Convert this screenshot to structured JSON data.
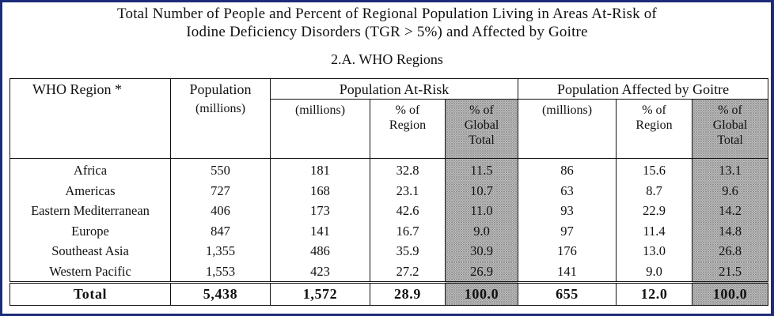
{
  "title_line1": "Total Number of People and Percent of Regional Population Living in Areas At-Risk of",
  "title_line2": "Iodine Deficiency Disorders (TGR > 5%) and Affected by Goitre",
  "subtitle": "2.A.  WHO Regions",
  "headers": {
    "region": "WHO Region *",
    "population": "Population",
    "population_unit": "(millions)",
    "at_risk_group": "Population At-Risk",
    "goitre_group": "Population Affected by Goitre",
    "millions": "(millions)",
    "pct_region_1": "% of",
    "pct_region_2": "Region",
    "pct_global_1": "% of",
    "pct_global_2": "Global",
    "pct_global_3": "Total"
  },
  "rows": [
    {
      "region": "Africa",
      "population": "550",
      "risk_millions": "181",
      "risk_pct_region": "32.8",
      "risk_pct_global": "11.5",
      "goitre_millions": "86",
      "goitre_pct_region": "15.6",
      "goitre_pct_global": "13.1"
    },
    {
      "region": "Americas",
      "population": "727",
      "risk_millions": "168",
      "risk_pct_region": "23.1",
      "risk_pct_global": "10.7",
      "goitre_millions": "63",
      "goitre_pct_region": "8.7",
      "goitre_pct_global": "9.6"
    },
    {
      "region": "Eastern Mediterranean",
      "population": "406",
      "risk_millions": "173",
      "risk_pct_region": "42.6",
      "risk_pct_global": "11.0",
      "goitre_millions": "93",
      "goitre_pct_region": "22.9",
      "goitre_pct_global": "14.2"
    },
    {
      "region": "Europe",
      "population": "847",
      "risk_millions": "141",
      "risk_pct_region": "16.7",
      "risk_pct_global": "9.0",
      "goitre_millions": "97",
      "goitre_pct_region": "11.4",
      "goitre_pct_global": "14.8"
    },
    {
      "region": "Southeast Asia",
      "population": "1,355",
      "risk_millions": "486",
      "risk_pct_region": "35.9",
      "risk_pct_global": "30.9",
      "goitre_millions": "176",
      "goitre_pct_region": "13.0",
      "goitre_pct_global": "26.8"
    },
    {
      "region": "Western Pacific",
      "population": "1,553",
      "risk_millions": "423",
      "risk_pct_region": "27.2",
      "risk_pct_global": "26.9",
      "goitre_millions": "141",
      "goitre_pct_region": "9.0",
      "goitre_pct_global": "21.5"
    }
  ],
  "total": {
    "label": "Total",
    "population": "5,438",
    "risk_millions": "1,572",
    "risk_pct_region": "28.9",
    "risk_pct_global": "100.0",
    "goitre_millions": "655",
    "goitre_pct_region": "12.0",
    "goitre_pct_global": "100.0"
  },
  "colors": {
    "frame": "#1c2b7a",
    "shade": "#cfcfcf"
  }
}
